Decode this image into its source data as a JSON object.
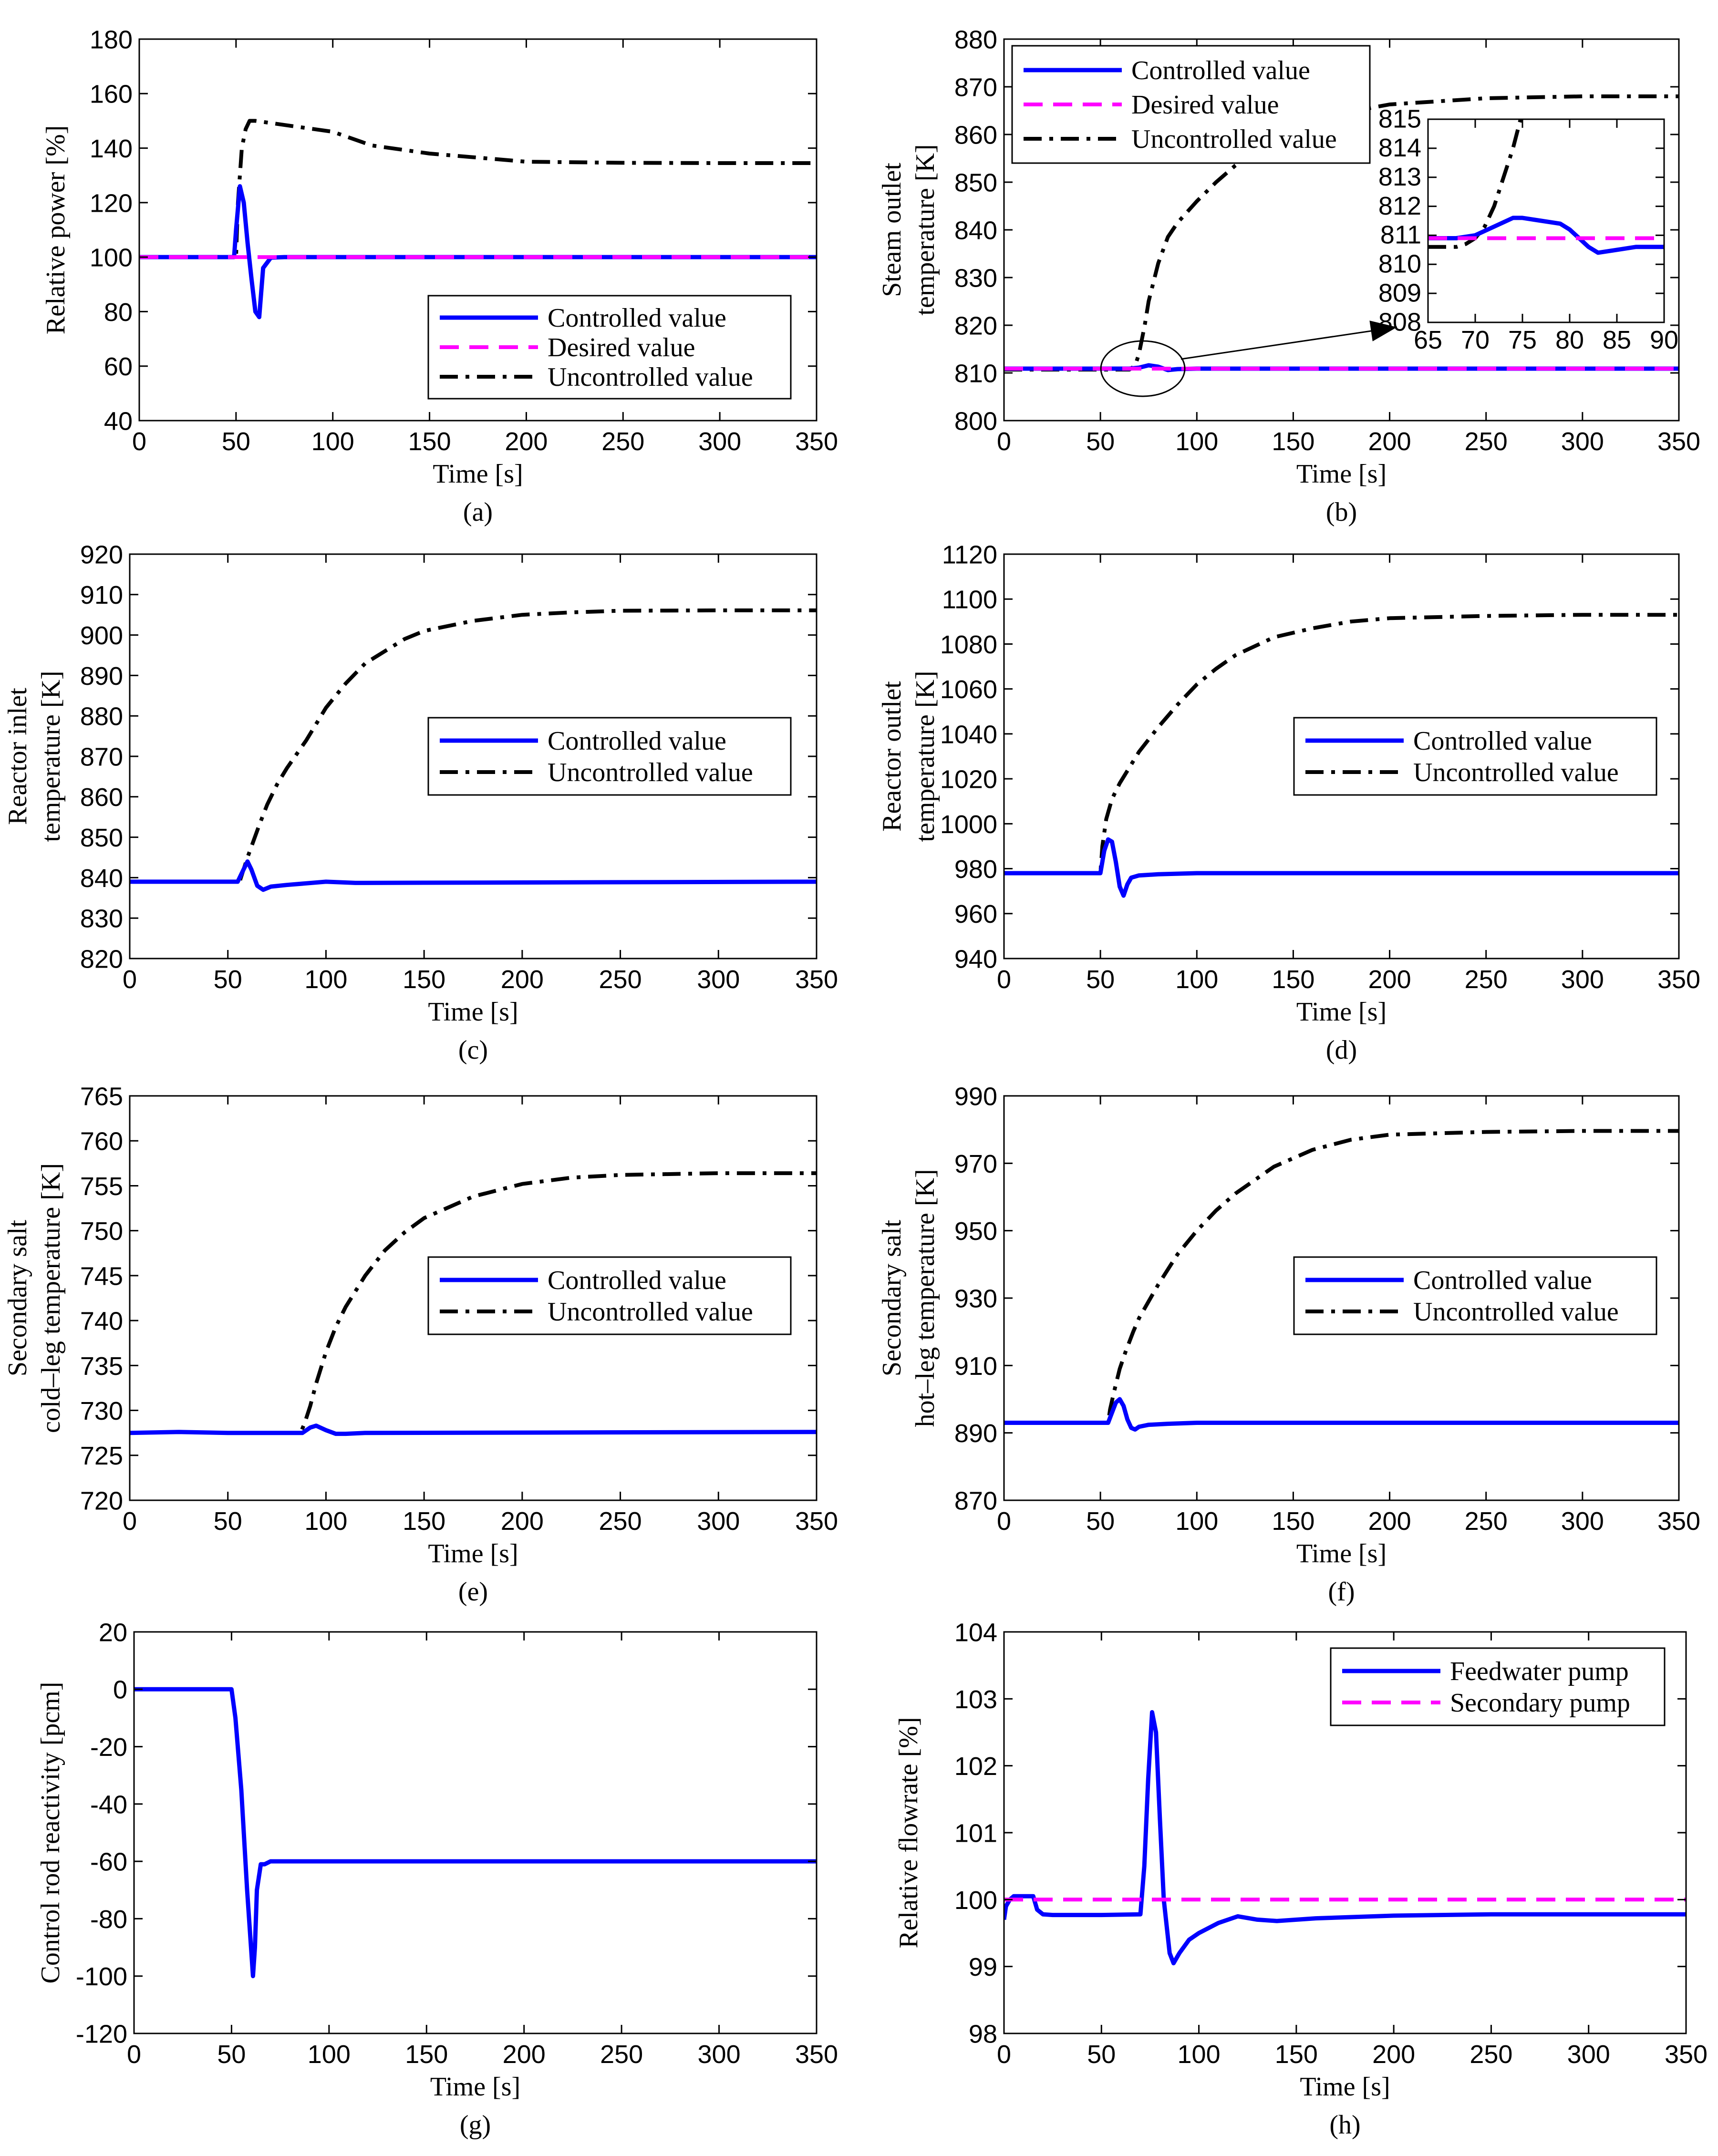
{
  "colors": {
    "controlled": "#0000ff",
    "desired": "#ff00ff",
    "uncontrolled": "#000000"
  },
  "chart_data": [
    {
      "id": "a",
      "type": "line",
      "caption": "(a)",
      "xlabel": "Time [s]",
      "ylabel": [
        "Relative power [%]"
      ],
      "xlim": [
        0,
        350
      ],
      "ylim": [
        40,
        180
      ],
      "xticks": [
        0,
        50,
        100,
        150,
        200,
        250,
        300,
        350
      ],
      "yticks": [
        40,
        60,
        80,
        100,
        120,
        140,
        160,
        180
      ],
      "legend": "bottom-right",
      "series": [
        {
          "name": "Controlled value",
          "style": "controlled",
          "x": [
            0,
            49,
            50,
            52,
            54,
            56,
            58,
            60,
            62,
            64,
            68,
            75,
            100,
            350
          ],
          "y": [
            100,
            100,
            110,
            126,
            120,
            105,
            92,
            80,
            78,
            96,
            99.8,
            100,
            100,
            100
          ]
        },
        {
          "name": "Desired value",
          "style": "desired",
          "x": [
            0,
            350
          ],
          "y": [
            100,
            100
          ]
        },
        {
          "name": "Uncontrolled value",
          "style": "uncontrolled",
          "x": [
            0,
            50,
            51,
            53,
            55,
            57,
            60,
            70,
            80,
            90,
            100,
            120,
            150,
            200,
            250,
            300,
            350
          ],
          "y": [
            100,
            100,
            120,
            140,
            147,
            150,
            150,
            149,
            148,
            147,
            146,
            141,
            138,
            135,
            134.6,
            134.5,
            134.5
          ]
        }
      ]
    },
    {
      "id": "b",
      "type": "line",
      "caption": "(b)",
      "xlabel": "Time [s]",
      "ylabel": [
        "Steam outlet",
        "temperature [K]"
      ],
      "xlim": [
        0,
        350
      ],
      "ylim": [
        800,
        880
      ],
      "xticks": [
        0,
        50,
        100,
        150,
        200,
        250,
        300,
        350
      ],
      "yticks": [
        800,
        810,
        820,
        830,
        840,
        850,
        860,
        870,
        880
      ],
      "legend": "top-left",
      "series": [
        {
          "name": "Controlled value",
          "style": "controlled",
          "x": [
            0,
            65,
            70,
            75,
            80,
            85,
            90,
            100,
            350
          ],
          "y": [
            810.9,
            810.9,
            811.1,
            811.6,
            811.3,
            810.6,
            810.8,
            810.9,
            810.9
          ]
        },
        {
          "name": "Desired value",
          "style": "desired",
          "x": [
            0,
            350
          ],
          "y": [
            810.9,
            810.9
          ]
        },
        {
          "name": "Uncontrolled value",
          "style": "uncontrolled",
          "x": [
            0,
            65,
            68,
            70,
            73,
            75,
            80,
            85,
            90,
            100,
            110,
            120,
            130,
            140,
            160,
            180,
            200,
            250,
            300,
            350
          ],
          "y": [
            810.7,
            810.7,
            811.5,
            814,
            820,
            825,
            833,
            838.5,
            841.5,
            846,
            850,
            853.5,
            856.5,
            859,
            862.5,
            864.8,
            866.3,
            867.6,
            868,
            868
          ]
        }
      ],
      "inset": {
        "xlim": [
          65,
          90
        ],
        "ylim": [
          808,
          815
        ],
        "xticks": [
          65,
          70,
          75,
          80,
          85,
          90
        ],
        "yticks": [
          808,
          809,
          810,
          811,
          812,
          813,
          814,
          815
        ],
        "series": [
          {
            "style": "controlled",
            "x": [
              65,
              68,
              70,
              72,
              74,
              75,
              77,
              79,
              80,
              81,
              82,
              83,
              85,
              87,
              90
            ],
            "y": [
              810.9,
              810.9,
              811.0,
              811.3,
              811.6,
              811.6,
              811.5,
              811.4,
              811.2,
              810.9,
              810.6,
              810.4,
              810.5,
              810.6,
              810.6
            ]
          },
          {
            "style": "desired",
            "x": [
              65,
              90
            ],
            "y": [
              810.9,
              810.9
            ]
          },
          {
            "style": "uncontrolled",
            "x": [
              65,
              68,
              69,
              70,
              71,
              72,
              73,
              74,
              74.8
            ],
            "y": [
              810.6,
              810.6,
              810.7,
              810.9,
              811.3,
              812.0,
              813.0,
              814.0,
              815.0
            ]
          }
        ]
      }
    },
    {
      "id": "c",
      "type": "line",
      "caption": "(c)",
      "xlabel": "Time [s]",
      "ylabel": [
        "Reactor inlet",
        "temperature [K]"
      ],
      "xlim": [
        0,
        350
      ],
      "ylim": [
        820,
        920
      ],
      "xticks": [
        0,
        50,
        100,
        150,
        200,
        250,
        300,
        350
      ],
      "yticks": [
        820,
        830,
        840,
        850,
        860,
        870,
        880,
        890,
        900,
        910,
        920
      ],
      "legend": "center-right",
      "series": [
        {
          "name": "Controlled value",
          "style": "controlled",
          "x": [
            0,
            55,
            58,
            60,
            62,
            65,
            68,
            72,
            80,
            100,
            115,
            350
          ],
          "y": [
            839,
            839,
            842,
            844,
            842,
            838,
            837,
            837.8,
            838.2,
            839,
            838.7,
            839
          ]
        },
        {
          "name": "Uncontrolled value",
          "style": "uncontrolled",
          "x": [
            0,
            56,
            58,
            60,
            63,
            66,
            70,
            75,
            80,
            90,
            100,
            110,
            120,
            130,
            140,
            150,
            175,
            200,
            225,
            250,
            300,
            350
          ],
          "y": [
            839,
            839,
            842,
            845,
            849,
            853,
            858,
            863,
            867,
            874,
            882,
            888,
            893,
            896,
            899,
            901,
            903.5,
            905,
            905.6,
            906,
            906.1,
            906.1
          ]
        }
      ]
    },
    {
      "id": "d",
      "type": "line",
      "caption": "(d)",
      "xlabel": "Time [s]",
      "ylabel": [
        "Reactor outlet",
        "temperature [K]"
      ],
      "xlim": [
        0,
        350
      ],
      "ylim": [
        940,
        1120
      ],
      "xticks": [
        0,
        50,
        100,
        150,
        200,
        250,
        300,
        350
      ],
      "yticks": [
        940,
        960,
        980,
        1000,
        1020,
        1040,
        1060,
        1080,
        1100,
        1120
      ],
      "legend": "center-right",
      "series": [
        {
          "name": "Controlled value",
          "style": "controlled",
          "x": [
            0,
            50,
            52,
            54,
            56,
            58,
            60,
            62,
            64,
            66,
            70,
            80,
            100,
            350
          ],
          "y": [
            978,
            978,
            988,
            993,
            992,
            983,
            972,
            968,
            973,
            976,
            977,
            977.5,
            978,
            978
          ]
        },
        {
          "name": "Uncontrolled value",
          "style": "uncontrolled",
          "x": [
            0,
            50,
            51,
            53,
            56,
            60,
            65,
            70,
            80,
            90,
            100,
            110,
            120,
            140,
            160,
            180,
            200,
            250,
            300,
            350
          ],
          "y": [
            978,
            978,
            990,
            1002,
            1011,
            1018,
            1025,
            1032,
            1043,
            1053,
            1062,
            1069,
            1075,
            1083,
            1087,
            1090,
            1091.5,
            1092.5,
            1093,
            1093
          ]
        }
      ]
    },
    {
      "id": "e",
      "type": "line",
      "caption": "(e)",
      "xlabel": "Time [s]",
      "ylabel": [
        "Secondary salt",
        "cold–leg temperature [K]"
      ],
      "xlim": [
        0,
        350
      ],
      "ylim": [
        720,
        765
      ],
      "xticks": [
        0,
        50,
        100,
        150,
        200,
        250,
        300,
        350
      ],
      "yticks": [
        720,
        725,
        730,
        735,
        740,
        745,
        750,
        755,
        760,
        765
      ],
      "legend": "center-right",
      "series": [
        {
          "name": "Controlled value",
          "style": "controlled",
          "x": [
            0,
            25,
            50,
            88,
            92,
            95,
            100,
            105,
            110,
            120,
            350
          ],
          "y": [
            727.5,
            727.6,
            727.5,
            727.5,
            728.1,
            728.3,
            727.8,
            727.4,
            727.4,
            727.5,
            727.6
          ]
        },
        {
          "name": "Uncontrolled value",
          "style": "uncontrolled",
          "x": [
            0,
            25,
            50,
            87,
            89,
            92,
            95,
            100,
            105,
            110,
            120,
            130,
            140,
            150,
            175,
            200,
            225,
            250,
            300,
            350
          ],
          "y": [
            727.5,
            727.6,
            727.5,
            727.5,
            728.5,
            730.5,
            733,
            736.5,
            739.3,
            741.5,
            745,
            747.8,
            749.8,
            751.4,
            753.8,
            755.2,
            755.9,
            756.2,
            756.4,
            756.4
          ]
        }
      ]
    },
    {
      "id": "f",
      "type": "line",
      "caption": "(f)",
      "xlabel": "Time [s]",
      "ylabel": [
        "Secondary salt",
        "hot–leg temperature [K]"
      ],
      "xlim": [
        0,
        350
      ],
      "ylim": [
        870,
        990
      ],
      "xticks": [
        0,
        50,
        100,
        150,
        200,
        250,
        300,
        350
      ],
      "yticks": [
        870,
        890,
        910,
        930,
        950,
        970,
        990
      ],
      "legend": "center-right",
      "series": [
        {
          "name": "Controlled value",
          "style": "controlled",
          "x": [
            0,
            54,
            56,
            58,
            60,
            62,
            64,
            66,
            68,
            70,
            75,
            85,
            100,
            350
          ],
          "y": [
            893,
            893,
            896,
            899,
            900,
            898,
            894,
            891.5,
            891,
            891.8,
            892.4,
            892.7,
            893,
            893
          ]
        },
        {
          "name": "Uncontrolled value",
          "style": "uncontrolled",
          "x": [
            0,
            54,
            55,
            57,
            60,
            63,
            67,
            70,
            80,
            90,
            100,
            110,
            120,
            140,
            160,
            180,
            200,
            250,
            300,
            350
          ],
          "y": [
            893,
            893,
            897,
            902,
            909,
            914,
            920,
            924,
            934,
            943,
            950,
            956,
            961,
            969,
            974,
            977,
            978.5,
            979.3,
            979.6,
            979.6
          ]
        }
      ]
    },
    {
      "id": "g",
      "type": "line",
      "caption": "(g)",
      "xlabel": "Time [s]",
      "ylabel": [
        "Control rod reactivity [pcm]"
      ],
      "xlim": [
        0,
        350
      ],
      "ylim": [
        -120,
        20
      ],
      "xticks": [
        0,
        50,
        100,
        150,
        200,
        250,
        300,
        350
      ],
      "yticks": [
        -120,
        -100,
        -80,
        -60,
        -40,
        -20,
        0,
        20
      ],
      "legend": "none",
      "series": [
        {
          "name": "Control rod reactivity",
          "style": "controlled",
          "x": [
            0,
            50,
            52,
            55,
            58,
            61,
            62,
            63,
            65,
            67,
            70,
            80,
            350
          ],
          "y": [
            0,
            0,
            -10,
            -35,
            -70,
            -100,
            -90,
            -70,
            -61,
            -61,
            -60,
            -60,
            -60
          ]
        }
      ]
    },
    {
      "id": "h",
      "type": "line",
      "caption": "(h)",
      "xlabel": "Time [s]",
      "ylabel": [
        "Relative flowrate [%]"
      ],
      "xlim": [
        0,
        350
      ],
      "ylim": [
        98,
        104
      ],
      "xticks": [
        0,
        50,
        100,
        150,
        200,
        250,
        300,
        350
      ],
      "yticks": [
        98,
        99,
        100,
        101,
        102,
        103,
        104
      ],
      "legend": "top-right",
      "series": [
        {
          "name": "Feedwater pump",
          "style": "controlled",
          "x": [
            0,
            1,
            3,
            5,
            15,
            17,
            20,
            25,
            50,
            70,
            72,
            74,
            76,
            78,
            80,
            82,
            85,
            87,
            90,
            95,
            100,
            110,
            120,
            130,
            140,
            160,
            200,
            250,
            300,
            350
          ],
          "y": [
            99.7,
            99.9,
            100,
            100.05,
            100.05,
            99.85,
            99.78,
            99.77,
            99.77,
            99.78,
            100.5,
            101.8,
            102.8,
            102.5,
            101.2,
            100,
            99.2,
            99.05,
            99.2,
            99.4,
            99.5,
            99.65,
            99.75,
            99.7,
            99.68,
            99.72,
            99.76,
            99.78,
            99.78,
            99.78
          ]
        },
        {
          "name": "Secondary pump",
          "style": "desired",
          "x": [
            0,
            350
          ],
          "y": [
            100,
            100
          ]
        }
      ]
    }
  ]
}
